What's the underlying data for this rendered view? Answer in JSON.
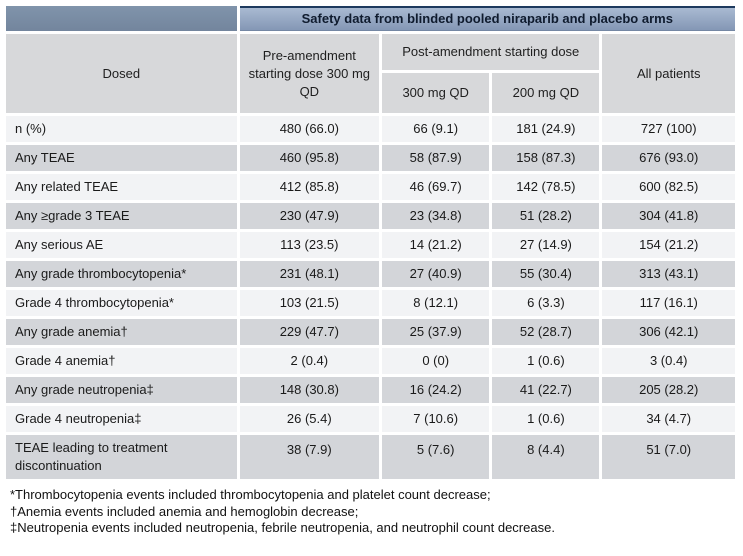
{
  "banner": {
    "title": "Safety data from blinded pooled niraparib and placebo arms"
  },
  "columns": {
    "dosed": "Dosed",
    "pre_amendment": "Pre-amendment starting dose 300 mg QD",
    "post_amendment": "Post-amendment starting dose",
    "post_300": "300 mg QD",
    "post_200": "200 mg QD",
    "all_patients": "All patients"
  },
  "table": {
    "rows": [
      {
        "label": "n (%)",
        "values": [
          "480 (66.0)",
          "66 (9.1)",
          "181 (24.9)",
          "727 (100)"
        ]
      },
      {
        "label": "Any TEAE",
        "values": [
          "460 (95.8)",
          "58 (87.9)",
          "158 (87.3)",
          "676 (93.0)"
        ]
      },
      {
        "label": "Any related TEAE",
        "values": [
          "412 (85.8)",
          "46 (69.7)",
          "142 (78.5)",
          "600 (82.5)"
        ]
      },
      {
        "label": "Any ≥grade 3 TEAE",
        "values": [
          "230 (47.9)",
          "23 (34.8)",
          "51 (28.2)",
          "304 (41.8)"
        ]
      },
      {
        "label": "Any serious AE",
        "values": [
          "113 (23.5)",
          "14 (21.2)",
          "27 (14.9)",
          "154 (21.2)"
        ]
      },
      {
        "label": "Any grade thrombocytopenia*",
        "values": [
          "231 (48.1)",
          "27 (40.9)",
          "55 (30.4)",
          "313 (43.1)"
        ]
      },
      {
        "label": "Grade 4 thrombocytopenia*",
        "values": [
          "103 (21.5)",
          "8 (12.1)",
          "6 (3.3)",
          "117 (16.1)"
        ]
      },
      {
        "label": "Any grade anemia†",
        "values": [
          "229 (47.7)",
          "25 (37.9)",
          "52 (28.7)",
          "306 (42.1)"
        ]
      },
      {
        "label": "Grade 4 anemia†",
        "values": [
          "2 (0.4)",
          "0 (0)",
          "1 (0.6)",
          "3 (0.4)"
        ]
      },
      {
        "label": "Any grade neutropenia‡",
        "values": [
          "148 (30.8)",
          "16 (24.2)",
          "41 (22.7)",
          "205 (28.2)"
        ]
      },
      {
        "label": "Grade 4 neutropenia‡",
        "values": [
          "26 (5.4)",
          "7 (10.6)",
          "1 (0.6)",
          "34 (4.7)"
        ]
      },
      {
        "label": "TEAE leading to treatment discontinuation",
        "values": [
          "38 (7.9)",
          "5 (7.6)",
          "8 (4.4)",
          "51 (7.0)"
        ]
      }
    ]
  },
  "footnotes": [
    "*Thrombocytopenia events included thrombocytopenia and platelet count decrease;",
    "†Anemia events included anemia and hemoglobin decrease;",
    "‡Neutropenia events included neutropenia, febrile neutropenia, and neutrophil count decrease."
  ],
  "colors": {
    "banner_fill_top": "#a9bad2",
    "banner_fill_bottom": "#8497b5",
    "banner_border": "#1d3a5e",
    "banner_spacer_fill": "#798ca3",
    "header_fill": "#d7d8da",
    "row_light": "#f2f3f5",
    "row_dark": "#d3d5d9",
    "text": "#1a1a1a"
  }
}
